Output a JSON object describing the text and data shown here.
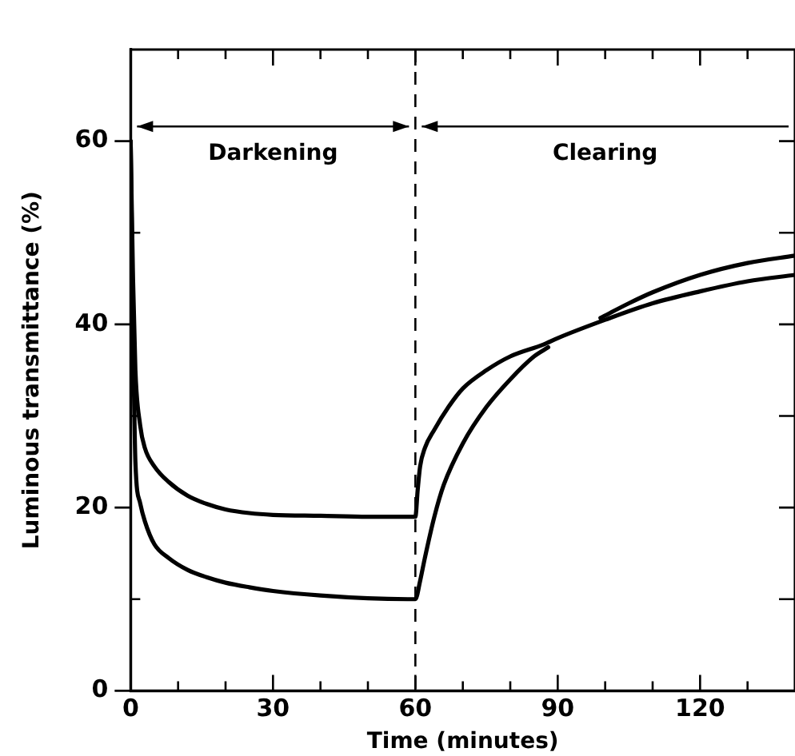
{
  "chart_data": {
    "type": "line",
    "xlabel": "Time (minutes)",
    "ylabel": "Luminous transmittance (%)",
    "xlim": [
      0,
      140
    ],
    "xticks": [
      0,
      {
        "value": 10,
        "label": null
      },
      {
        "value": 20,
        "label": null
      },
      30,
      {
        "value": 40,
        "label": null
      },
      {
        "value": 50,
        "label": null
      },
      60,
      {
        "value": 70,
        "label": null
      },
      {
        "value": 80,
        "label": null
      },
      90,
      {
        "value": 100,
        "label": null
      },
      {
        "value": 110,
        "label": null
      },
      120,
      {
        "value": 130,
        "label": null
      }
    ],
    "ylim": [
      0,
      70
    ],
    "yticks": [
      0,
      {
        "value": 10,
        "label": null
      },
      20,
      {
        "value": 30,
        "label": null
      },
      40,
      {
        "value": 50,
        "label": null
      },
      60
    ],
    "series": [
      {
        "color": "#000000",
        "x": [
          0,
          0.5,
          1,
          2,
          3,
          5,
          8,
          12,
          16,
          20,
          25,
          30,
          40,
          50,
          60,
          60.5,
          61,
          62,
          64,
          67,
          70,
          75,
          80,
          87,
          90,
          100,
          110,
          120,
          130,
          140
        ],
        "values": [
          60,
          45,
          35,
          29,
          26.5,
          24.5,
          22.8,
          21.3,
          20.4,
          19.8,
          19.4,
          19.2,
          19.1,
          19,
          19,
          22,
          24.5,
          26.5,
          28.5,
          31,
          33,
          35,
          36.5,
          37.8,
          38.5,
          40.5,
          42.3,
          43.6,
          44.7,
          45.4
        ]
      },
      {
        "color": "#000000",
        "x": [
          0,
          0.5,
          1,
          2,
          3,
          5,
          8,
          12,
          16,
          20,
          25,
          30,
          40,
          50,
          60,
          61,
          62,
          64,
          66,
          70,
          75,
          80,
          85,
          88,
          94,
          99,
          105,
          110,
          120,
          130,
          140
        ],
        "values": [
          60,
          40,
          25,
          20.5,
          18.5,
          16,
          14.5,
          13.2,
          12.4,
          11.8,
          11.3,
          10.9,
          10.4,
          10.1,
          10,
          12,
          14.5,
          19,
          22.5,
          27,
          31,
          34,
          36.5,
          37.5,
          null,
          40.7,
          42.3,
          43.5,
          45.4,
          46.7,
          47.5
        ]
      }
    ],
    "ref_lines": [
      {
        "axis": "x",
        "value": 60,
        "line_style": "dashed",
        "color": "#000000"
      }
    ],
    "annotations": [
      "Darkening",
      "Clearing"
    ],
    "grid": false,
    "legend": false,
    "marker": "none",
    "line_style": "solid"
  }
}
